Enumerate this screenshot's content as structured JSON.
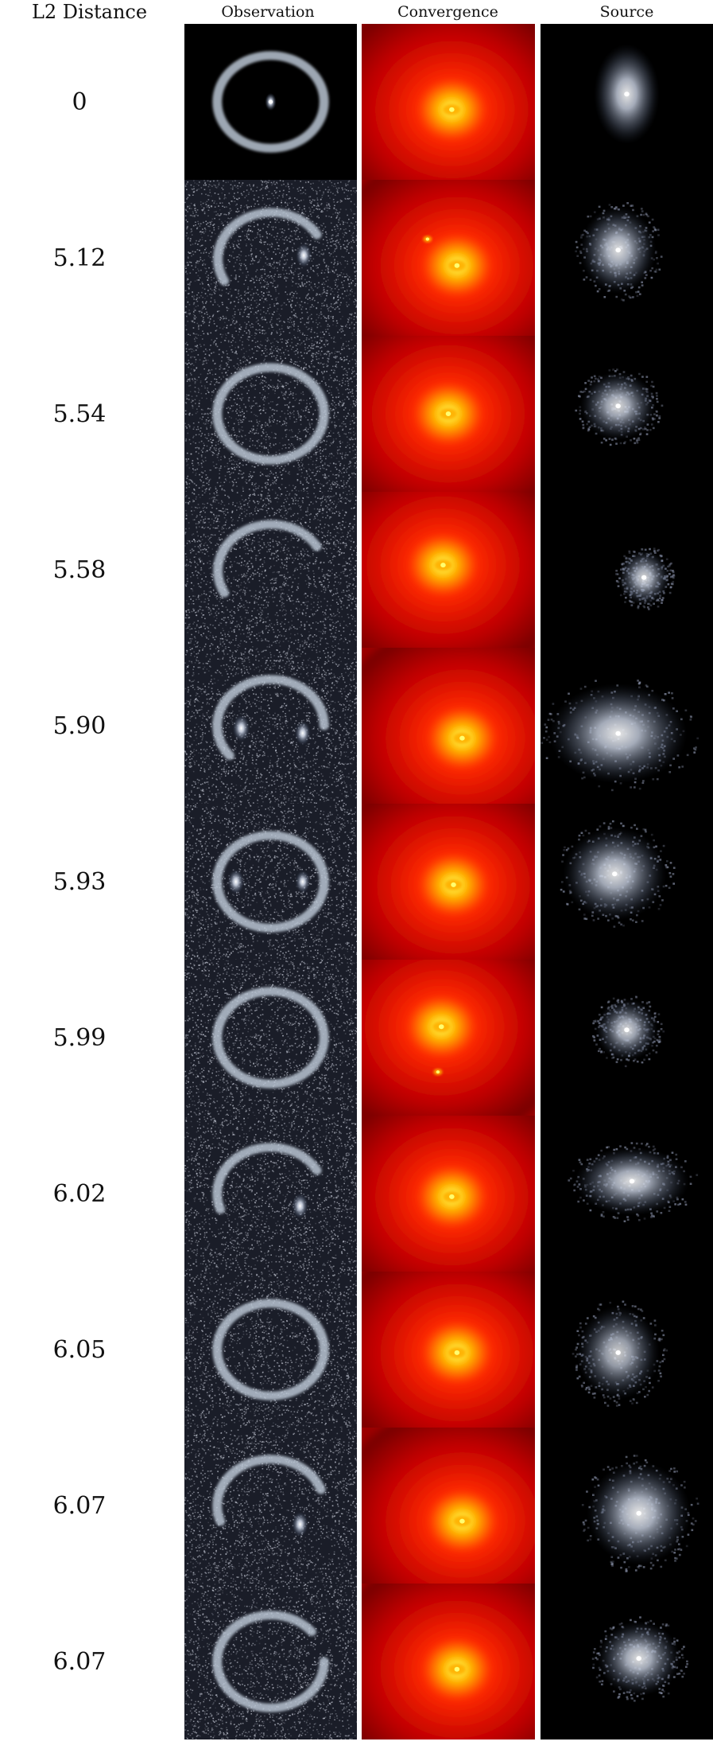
{
  "headers": {
    "distance": "L2 Distance",
    "observation": "Observation",
    "convergence": "Convergence",
    "source": "Source"
  },
  "rows": [
    {
      "distance": "0",
      "arcs": [
        [
          0,
          360
        ]
      ],
      "blobs": [
        [
          0.0,
          0.0,
          0.12
        ]
      ],
      "noise": false,
      "conv": [
        [
          0.52,
          0.55
        ]
      ],
      "src": [
        0.5,
        0.45,
        0.19,
        0.32,
        0.9
      ]
    },
    {
      "distance": "5.12",
      "arcs": [
        [
          150,
          330
        ]
      ],
      "blobs": [
        [
          0.62,
          -0.05,
          0.55
        ]
      ],
      "noise": true,
      "conv": [
        [
          0.55,
          0.55
        ],
        [
          0.38,
          0.38
        ]
      ],
      "src": [
        0.45,
        0.45,
        0.22,
        0.28,
        0.88
      ]
    },
    {
      "distance": "5.54",
      "arcs": [
        [
          0,
          360
        ]
      ],
      "blobs": [],
      "noise": true,
      "conv": [
        [
          0.5,
          0.5
        ]
      ],
      "src": [
        0.45,
        0.45,
        0.22,
        0.22,
        0.85
      ]
    },
    {
      "distance": "5.58",
      "arcs": [
        [
          150,
          330
        ]
      ],
      "blobs": [],
      "noise": true,
      "conv": [
        [
          0.47,
          0.47
        ]
      ],
      "src": [
        0.6,
        0.55,
        0.15,
        0.18,
        0.85
      ]
    },
    {
      "distance": "5.90",
      "arcs": [
        [
          140,
          360
        ]
      ],
      "blobs": [
        [
          -0.55,
          0.05,
          0.7
        ],
        [
          0.6,
          0.15,
          0.55
        ]
      ],
      "noise": true,
      "conv": [
        [
          0.58,
          0.58
        ]
      ],
      "src": [
        0.45,
        0.55,
        0.4,
        0.32,
        0.9
      ]
    },
    {
      "distance": "5.93",
      "arcs": [
        [
          0,
          360
        ]
      ],
      "blobs": [
        [
          -0.65,
          0.0,
          0.6
        ],
        [
          0.6,
          0.0,
          0.45
        ]
      ],
      "noise": true,
      "conv": [
        [
          0.53,
          0.52
        ]
      ],
      "src": [
        0.43,
        0.45,
        0.3,
        0.3,
        0.88
      ]
    },
    {
      "distance": "5.99",
      "arcs": [
        [
          0,
          360
        ]
      ],
      "blobs": [],
      "noise": true,
      "conv": [
        [
          0.46,
          0.43
        ],
        [
          0.44,
          0.72
        ]
      ],
      "src": [
        0.5,
        0.45,
        0.18,
        0.2,
        0.85
      ]
    },
    {
      "distance": "6.02",
      "arcs": [
        [
          160,
          330
        ]
      ],
      "blobs": [
        [
          0.55,
          0.25,
          0.6
        ]
      ],
      "noise": true,
      "conv": [
        [
          0.52,
          0.52
        ]
      ],
      "src": [
        0.53,
        0.42,
        0.33,
        0.22,
        0.88
      ]
    },
    {
      "distance": "6.05",
      "arcs": [
        [
          0,
          360
        ]
      ],
      "blobs": [],
      "noise": true,
      "conv": [
        [
          0.55,
          0.52
        ]
      ],
      "src": [
        0.45,
        0.52,
        0.24,
        0.3,
        0.8
      ]
    },
    {
      "distance": "6.07",
      "arcs": [
        [
          160,
          340
        ]
      ],
      "blobs": [
        [
          0.55,
          0.38,
          0.6
        ]
      ],
      "noise": true,
      "conv": [
        [
          0.58,
          0.6
        ]
      ],
      "src": [
        0.57,
        0.55,
        0.3,
        0.33,
        0.9
      ]
    },
    {
      "distance": "6.07",
      "arcs": [
        [
          0,
          320
        ]
      ],
      "blobs": [],
      "noise": true,
      "conv": [
        [
          0.55,
          0.55
        ]
      ],
      "src": [
        0.57,
        0.48,
        0.24,
        0.24,
        0.88
      ]
    }
  ]
}
